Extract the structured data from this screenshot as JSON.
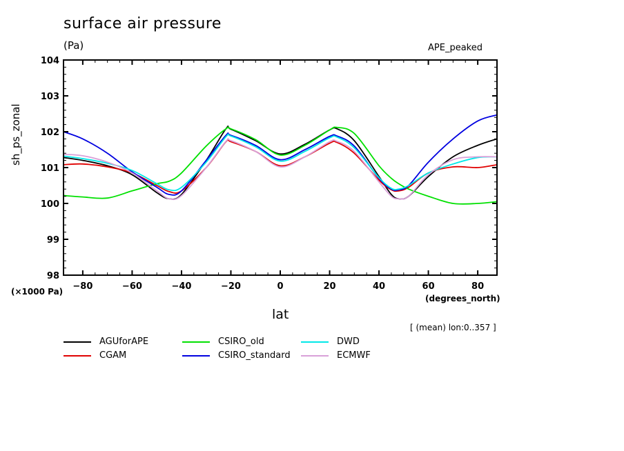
{
  "chart_data": {
    "type": "line",
    "title": "surface air pressure",
    "units": "(Pa)",
    "experiment": "APE_peaked",
    "xlabel": "lat",
    "xunits": "(degrees_north)",
    "ylabel": "sh_ps_zonal",
    "yscale_label": "(×1000 Pa)",
    "note": "[ (mean) lon:0..357 ]",
    "xlim": [
      -87.8,
      87.8
    ],
    "ylim": [
      98,
      104
    ],
    "xticks": [
      -80,
      -60,
      -40,
      -20,
      0,
      20,
      40,
      60,
      80
    ],
    "xtick_labels": [
      "−80",
      "−60",
      "−40",
      "−20",
      "0",
      "20",
      "40",
      "60",
      "80"
    ],
    "yticks": [
      98,
      99,
      100,
      101,
      102,
      103,
      104
    ],
    "ytick_labels": [
      "98",
      "99",
      "100",
      "101",
      "102",
      "103",
      "104"
    ],
    "grid": false,
    "legend_position": "bottom",
    "x": [
      -87.8,
      -80,
      -70,
      -60,
      -50,
      -45,
      -40,
      -30,
      -22,
      -20,
      -10,
      0,
      10,
      20,
      23,
      30,
      40,
      45,
      48,
      52,
      60,
      70,
      80,
      87.8
    ],
    "series": [
      {
        "name": "AGUforAPE",
        "color": "#000000",
        "values": [
          101.28,
          101.2,
          101.05,
          100.8,
          100.3,
          100.13,
          100.25,
          101.2,
          102.08,
          102.07,
          101.75,
          101.38,
          101.65,
          102.05,
          102.08,
          101.75,
          100.75,
          100.25,
          100.13,
          100.2,
          100.75,
          101.3,
          101.62,
          101.8
        ]
      },
      {
        "name": "CGAM",
        "color": "#e00000",
        "values": [
          101.08,
          101.1,
          101.02,
          100.85,
          100.5,
          100.33,
          100.35,
          101.0,
          101.72,
          101.72,
          101.45,
          101.05,
          101.3,
          101.68,
          101.7,
          101.4,
          100.65,
          100.38,
          100.35,
          100.45,
          100.85,
          101.02,
          101.0,
          101.08
        ]
      },
      {
        "name": "CSIRO_old",
        "color": "#00e000",
        "values": [
          100.22,
          100.18,
          100.15,
          100.35,
          100.55,
          100.62,
          100.85,
          101.6,
          102.08,
          102.08,
          101.78,
          101.35,
          101.62,
          102.05,
          102.12,
          101.95,
          101.05,
          100.7,
          100.55,
          100.4,
          100.2,
          100.0,
          100.0,
          100.05
        ]
      },
      {
        "name": "CSIRO_standard",
        "color": "#0000e0",
        "values": [
          102.0,
          101.8,
          101.4,
          100.88,
          100.45,
          100.25,
          100.35,
          101.2,
          101.9,
          101.9,
          101.62,
          101.22,
          101.5,
          101.87,
          101.88,
          101.6,
          100.7,
          100.4,
          100.38,
          100.5,
          101.15,
          101.8,
          102.3,
          102.47
        ]
      },
      {
        "name": "DWD",
        "color": "#00e8e8",
        "values": [
          101.32,
          101.25,
          101.12,
          100.92,
          100.55,
          100.38,
          100.45,
          101.15,
          101.86,
          101.88,
          101.58,
          101.18,
          101.45,
          101.83,
          101.85,
          101.55,
          100.72,
          100.42,
          100.4,
          100.5,
          100.85,
          101.1,
          101.28,
          101.3
        ]
      },
      {
        "name": "ECMWF",
        "color": "#d8a0d8",
        "values": [
          101.37,
          101.33,
          101.15,
          100.85,
          100.35,
          100.13,
          100.22,
          101.0,
          101.73,
          101.75,
          101.45,
          101.02,
          101.3,
          101.72,
          101.73,
          101.45,
          100.6,
          100.2,
          100.13,
          100.2,
          100.8,
          101.22,
          101.3,
          101.3
        ]
      }
    ]
  }
}
